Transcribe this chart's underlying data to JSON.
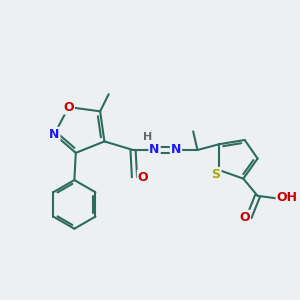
{
  "bg_color": "#edf0f2",
  "bond_color": "#2d6b5e",
  "atom_colors": {
    "O": "#cc0000",
    "N": "#1a1aee",
    "S": "#aaaa00",
    "C": "#2d6b5e",
    "H": "#666666"
  },
  "bond_width": 1.5,
  "font_size": 9,
  "figsize": [
    3.0,
    3.0
  ],
  "dpi": 100
}
